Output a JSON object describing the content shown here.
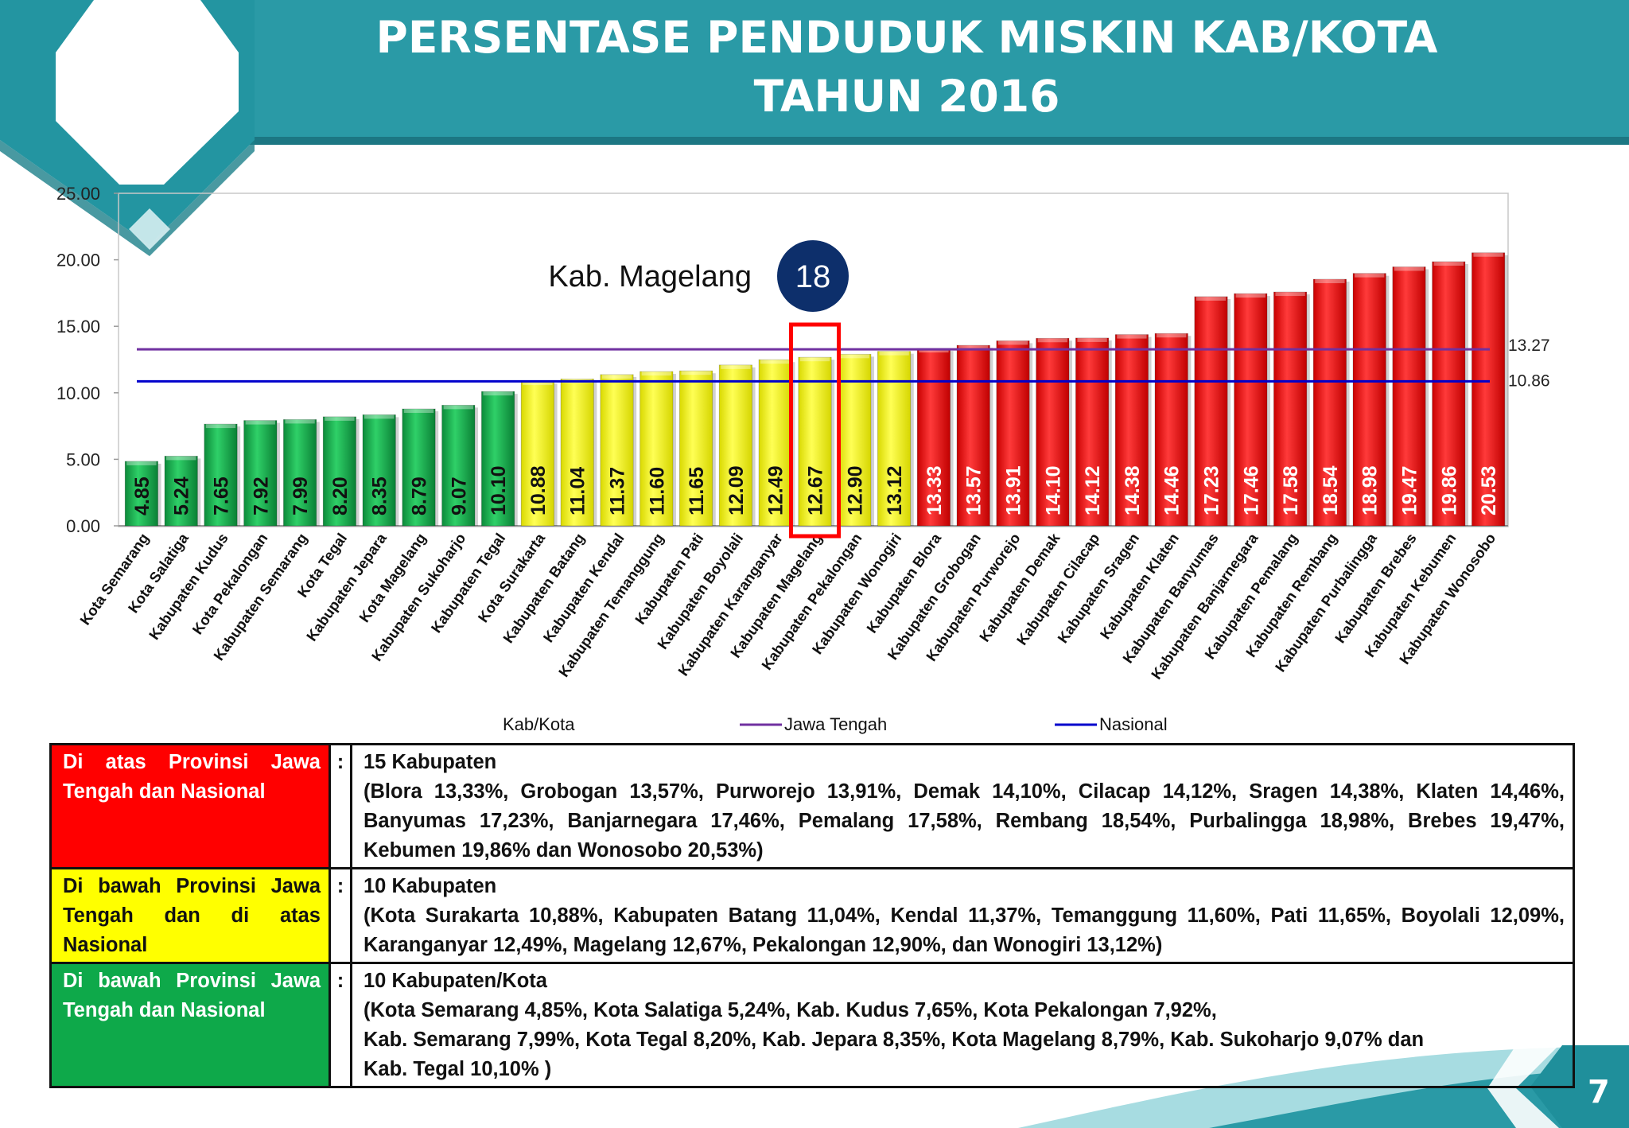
{
  "slide": {
    "title_lines": [
      "PERSENTASE PENDUDUK MISKIN KAB/KOTA",
      "TAHUN 2016"
    ],
    "page_number": "7",
    "colors": {
      "banner": "#2a9aa6",
      "banner_dark": "#1f7f8b",
      "accent": "#0d2f6b"
    }
  },
  "chart_data": {
    "type": "bar",
    "categories": [
      "Kota Semarang",
      "Kota Salatiga",
      "Kabupaten Kudus",
      "Kota Pekalongan",
      "Kabupaten Semarang",
      "Kota Tegal",
      "Kabupaten Jepara",
      "Kota Magelang",
      "Kabupaten Sukoharjo",
      "Kabupaten Tegal",
      "Kota Surakarta",
      "Kabupaten Batang",
      "Kabupaten Kendal",
      "Kabupaten Temanggung",
      "Kabupaten Pati",
      "Kabupaten Boyolali",
      "Kabupaten Karanganyar",
      "Kabupaten Magelang",
      "Kabupaten Pekalongan",
      "Kabupaten Wonogiri",
      "Kabupaten Blora",
      "Kabupaten Grobogan",
      "Kabupaten Purworejo",
      "Kabupaten Demak",
      "Kabupaten Cilacap",
      "Kabupaten Sragen",
      "Kabupaten Klaten",
      "Kabupaten Banyumas",
      "Kabupaten Banjarnegara",
      "Kabupaten Pemalang",
      "Kabupaten Rembang",
      "Kabupaten Purbalingga",
      "Kabupaten Brebes",
      "Kabupaten Kebumen",
      "Kabupaten Wonosobo"
    ],
    "values": [
      4.85,
      5.24,
      7.65,
      7.92,
      7.99,
      8.2,
      8.35,
      8.79,
      9.07,
      10.1,
      10.88,
      11.04,
      11.37,
      11.6,
      11.65,
      12.09,
      12.49,
      12.67,
      12.9,
      13.12,
      13.33,
      13.57,
      13.91,
      14.1,
      14.12,
      14.38,
      14.46,
      17.23,
      17.46,
      17.58,
      18.54,
      18.98,
      19.47,
      19.86,
      20.53
    ],
    "value_labels": [
      "4.85",
      "5.24",
      "7.65",
      "7.92",
      "7.99",
      "8.20",
      "8.35",
      "8.79",
      "9.07",
      "10.10",
      "10.88",
      "11.04",
      "11.37",
      "11.60",
      "11.65",
      "12.09",
      "12.49",
      "12.67",
      "12.90",
      "13.12",
      "13.33",
      "13.57",
      "13.91",
      "14.10",
      "14.12",
      "14.38",
      "14.46",
      "17.23",
      "17.46",
      "17.58",
      "18.54",
      "18.98",
      "19.47",
      "19.86",
      "20.53"
    ],
    "bar_colors": [
      "green",
      "green",
      "green",
      "green",
      "green",
      "green",
      "green",
      "green",
      "green",
      "green",
      "yellow",
      "yellow",
      "yellow",
      "yellow",
      "yellow",
      "yellow",
      "yellow",
      "yellow",
      "yellow",
      "yellow",
      "red",
      "red",
      "red",
      "red",
      "red",
      "red",
      "red",
      "red",
      "red",
      "red",
      "red",
      "red",
      "red",
      "red",
      "red"
    ],
    "palette": {
      "green": "#18b04f",
      "yellow": "#ffff00",
      "red": "#ff0000",
      "green_text": "#111111",
      "yellow_text": "#111111",
      "red_text": "#ffffff"
    },
    "ylim": [
      0,
      25
    ],
    "yticks": [
      0,
      5,
      10,
      15,
      20,
      25
    ],
    "ytick_labels": [
      "0.00",
      "5.00",
      "10.00",
      "15.00",
      "20.00",
      "25.00"
    ],
    "reference_lines": [
      {
        "name": "Jawa Tengah",
        "value": 13.27,
        "label": "13.27",
        "color": "#7030a0"
      },
      {
        "name": "Nasional",
        "value": 10.86,
        "label": "10.86",
        "color": "#0000cc"
      }
    ],
    "legend": {
      "placement": "bottom",
      "entries": [
        "Kab/Kota",
        "Jawa Tengah",
        "Nasional"
      ]
    },
    "highlight": {
      "index": 17,
      "label": "Kab. Magelang",
      "rank": "18",
      "box_color": "#ff0000"
    },
    "grid": false
  },
  "table": {
    "rows": [
      {
        "category": "Di atas Provinsi Jawa Tengah dan Nasional",
        "color": "red",
        "colon": ":",
        "heading": "15 Kabupaten",
        "detail": "(Blora 13,33%, Grobogan 13,57%, Purworejo 13,91%, Demak 14,10%, Cilacap 14,12%, Sragen 14,38%, Klaten 14,46%, Banyumas 17,23%, Banjarnegara 17,46%, Pemalang 17,58%, Rembang 18,54%, Purbalingga 18,98%, Brebes 19,47%, Kebumen 19,86% dan Wonosobo 20,53%)"
      },
      {
        "category": "Di bawah Provinsi Jawa Tengah dan di atas Nasional",
        "color": "yellow",
        "colon": ":",
        "heading": "10 Kabupaten",
        "detail": "(Kota Surakarta 10,88%, Kabupaten Batang 11,04%, Kendal 11,37%, Temanggung 11,60%, Pati 11,65%, Boyolali 12,09%, Karanganyar 12,49%, Magelang 12,67%, Pekalongan 12,90%, dan Wonogiri 13,12%)"
      },
      {
        "category": "Di bawah Provinsi Jawa Tengah dan Nasional",
        "color": "green",
        "colon": ":",
        "heading": "10 Kabupaten/Kota",
        "detail_lines": [
          "(Kota Semarang 4,85%, Kota Salatiga 5,24%, Kab. Kudus 7,65%, Kota Pekalongan 7,92%,",
          "Kab. Semarang 7,99%, Kota Tegal 8,20%, Kab. Jepara 8,35%, Kota Magelang 8,79%, Kab. Sukoharjo 9,07% dan",
          "Kab. Tegal 10,10% )"
        ]
      }
    ]
  }
}
